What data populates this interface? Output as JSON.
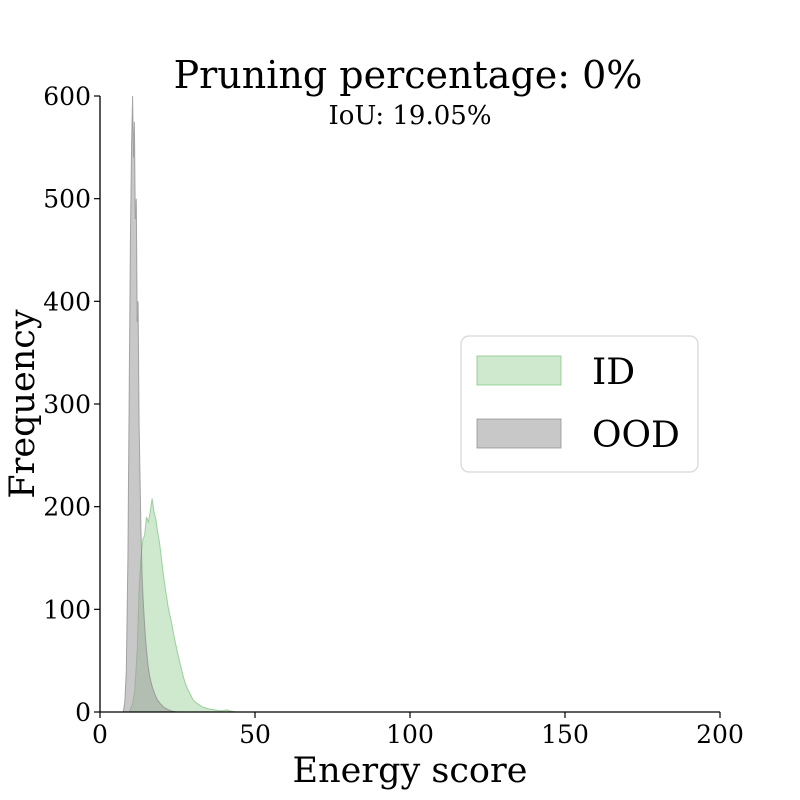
{
  "chart_data": {
    "type": "area",
    "title": "Pruning percentage: 0%",
    "subtitle": "IoU: 19.05%",
    "xlabel": "Energy score",
    "ylabel": "Frequency",
    "xlim": [
      0,
      200
    ],
    "ylim": [
      0,
      600
    ],
    "xticks": [
      "0",
      "50",
      "100",
      "150",
      "200"
    ],
    "yticks": [
      "0",
      "100",
      "200",
      "300",
      "400",
      "500",
      "600"
    ],
    "grid": false,
    "legend_position": "center-right",
    "series": [
      {
        "name": "ID",
        "fill": "#9fd39f",
        "stroke": "#7cc17c",
        "opacity": 0.5,
        "x": [
          9.5,
          10.5,
          11.2,
          12.0,
          12.6,
          13.2,
          13.8,
          14.4,
          15.0,
          15.6,
          16.2,
          16.8,
          17.4,
          18.0,
          18.6,
          19.2,
          19.8,
          20.4,
          21.2,
          22.0,
          23.0,
          24.0,
          25.0,
          26.0,
          27.0,
          28.0,
          29.0,
          30.0,
          31.0,
          32.0,
          33.0,
          34.0,
          35.0,
          37.0,
          39.0,
          41.0,
          42.0,
          44.0
        ],
        "y": [
          0,
          8,
          20,
          60,
          120,
          150,
          168,
          172,
          190,
          185,
          195,
          208,
          195,
          188,
          175,
          165,
          150,
          135,
          118,
          102,
          88,
          72,
          58,
          45,
          33,
          24,
          18,
          12,
          9,
          7,
          5,
          4,
          3,
          2,
          1,
          2,
          1,
          0
        ]
      },
      {
        "name": "OOD",
        "fill": "#9b9b9b",
        "stroke": "#888888",
        "opacity": 0.55,
        "x": [
          7.5,
          8.0,
          8.5,
          9.0,
          9.4,
          9.8,
          10.2,
          10.5,
          10.8,
          11.1,
          11.4,
          11.7,
          12.0,
          12.3,
          12.6,
          12.9,
          13.2,
          13.6,
          14.0,
          14.5,
          15.0,
          15.5,
          16.0,
          16.8,
          17.6,
          18.5,
          19.5,
          20.5,
          21.5,
          23.0,
          25.0
        ],
        "y": [
          0,
          10,
          40,
          150,
          300,
          460,
          555,
          600,
          540,
          575,
          480,
          500,
          380,
          400,
          280,
          230,
          180,
          130,
          105,
          80,
          60,
          45,
          35,
          25,
          18,
          12,
          8,
          5,
          3,
          1,
          0
        ]
      }
    ]
  }
}
